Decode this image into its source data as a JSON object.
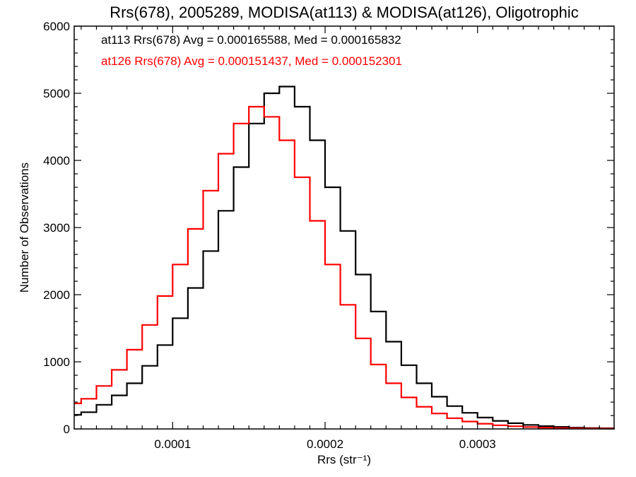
{
  "chart_data": {
    "type": "line",
    "title": "Rrs(678), 2005289, MODISA(at113) & MODISA(at126), Oligotrophic",
    "xlabel": "Rrs (str⁻¹)",
    "ylabel": "Number of Observations",
    "xlim": [
      3.54e-05,
      0.0003896
    ],
    "ylim": [
      0,
      6000
    ],
    "x_ticks": [
      {
        "value": 0.0001,
        "label": "0.0001"
      },
      {
        "value": 0.0002,
        "label": "0.0002"
      },
      {
        "value": 0.0003,
        "label": "0.0003"
      }
    ],
    "y_ticks": [
      {
        "value": 0,
        "label": "0"
      },
      {
        "value": 1000,
        "label": "1000"
      },
      {
        "value": 2000,
        "label": "2000"
      },
      {
        "value": 3000,
        "label": "3000"
      },
      {
        "value": 4000,
        "label": "4000"
      },
      {
        "value": 5000,
        "label": "5000"
      },
      {
        "value": 6000,
        "label": "6000"
      }
    ],
    "grid": false,
    "legend_position": "top-left",
    "annotations": [
      {
        "text": "at113 Rrs(678) Avg = 0.000165588, Med = 0.000165832",
        "color": "#000000"
      },
      {
        "text": "at126 Rrs(678) Avg = 0.000151437, Med = 0.000152301",
        "color": "#ff0000"
      }
    ],
    "series": [
      {
        "color": "#000000",
        "x": [
          3.5e-05,
          4e-05,
          5e-05,
          6e-05,
          7e-05,
          8e-05,
          9e-05,
          0.0001,
          0.00011,
          0.00012,
          0.00013,
          0.00014,
          0.00015,
          0.00016,
          0.00017,
          0.00018,
          0.00019,
          0.0002,
          0.00021,
          0.00022,
          0.00023,
          0.00024,
          0.00025,
          0.00026,
          0.00027,
          0.00028,
          0.00029,
          0.0003,
          0.00031,
          0.00032,
          0.00033,
          0.00034,
          0.00035,
          0.00036,
          0.00037,
          0.00038,
          0.00039
        ],
        "values": [
          210,
          250,
          360,
          500,
          680,
          940,
          1250,
          1650,
          2100,
          2650,
          3250,
          3900,
          4550,
          5000,
          5100,
          4800,
          4300,
          3600,
          2950,
          2300,
          1750,
          1300,
          950,
          680,
          480,
          340,
          240,
          170,
          120,
          85,
          60,
          42,
          30,
          20,
          14,
          10,
          7
        ]
      },
      {
        "color": "#ff0000",
        "x": [
          3.5e-05,
          4e-05,
          5e-05,
          6e-05,
          7e-05,
          8e-05,
          9e-05,
          0.0001,
          0.00011,
          0.00012,
          0.00013,
          0.00014,
          0.00015,
          0.00016,
          0.00017,
          0.00018,
          0.00019,
          0.0002,
          0.00021,
          0.00022,
          0.00023,
          0.00024,
          0.00025,
          0.00026,
          0.00027,
          0.00028,
          0.00029,
          0.0003,
          0.00031,
          0.00032,
          0.00033,
          0.00034,
          0.00035,
          0.00036,
          0.00037,
          0.00038,
          0.00039
        ],
        "values": [
          380,
          450,
          640,
          880,
          1180,
          1550,
          1980,
          2450,
          2980,
          3550,
          4100,
          4550,
          4800,
          4650,
          4300,
          3750,
          3100,
          2450,
          1850,
          1350,
          960,
          680,
          470,
          330,
          230,
          160,
          110,
          78,
          55,
          40,
          28,
          20,
          14,
          10,
          7,
          5,
          3
        ]
      }
    ]
  }
}
